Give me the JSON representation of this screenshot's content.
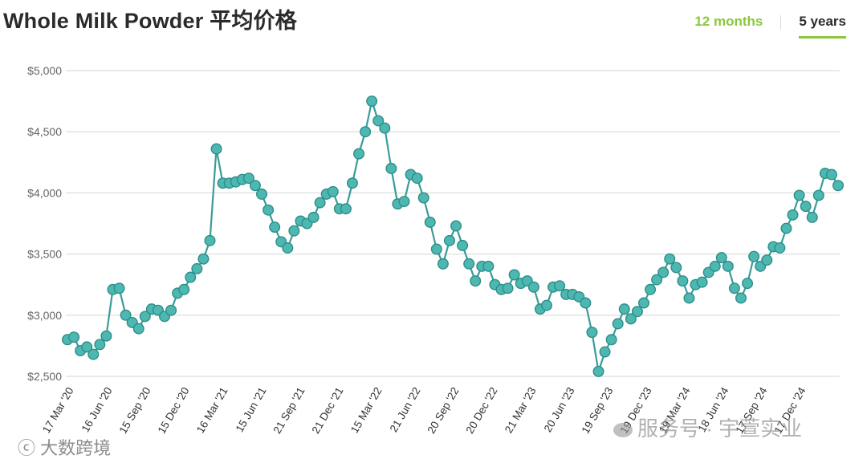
{
  "header": {
    "title": "Whole Milk Powder 平均价格",
    "tabs": [
      {
        "label": "12 months",
        "active": false
      },
      {
        "label": "5 years",
        "active": true
      }
    ]
  },
  "watermarks": {
    "left": "大数跨境",
    "right": "服务号 · 宇萱实业"
  },
  "colors": {
    "line": "#3a9c98",
    "marker_fill": "#4db8b1",
    "marker_stroke": "#2e8e88",
    "tab_accent": "#8cc63f",
    "grid": "#e3e3e3"
  },
  "chart_data": {
    "type": "line",
    "title": "Whole Milk Powder 平均价格",
    "xlabel": "",
    "ylabel": "",
    "ylim": [
      2500,
      5000
    ],
    "yticks": [
      2500,
      3000,
      3500,
      4000,
      4500,
      5000
    ],
    "ytick_labels": [
      "$2,500",
      "$3,000",
      "$3,500",
      "$4,000",
      "$4,500",
      "$5,000"
    ],
    "grid": true,
    "legend": "none",
    "xtick_labels": [
      "17 Mar '20",
      "16 Jun '20",
      "15 Sep '20",
      "15 Dec '20",
      "16 Mar '21",
      "15 Jun '21",
      "21 Sep '21",
      "21 Dec '21",
      "15 Mar '22",
      "21 Jun '22",
      "20 Sep '22",
      "20 Dec '22",
      "21 Mar '23",
      "20 Jun '23",
      "19 Sep '23",
      "19 Dec '23",
      "19 Mar '24",
      "18 Jun '24",
      "17 Sep '24",
      "17 Dec '24"
    ],
    "series": [
      {
        "values": [
          2800,
          2820,
          2710,
          2740,
          2680,
          2760,
          2830,
          3210,
          3220,
          3000,
          2940,
          2890,
          2990,
          3050,
          3040,
          2990,
          3040,
          3180,
          3210,
          3310,
          3380,
          3460,
          3610,
          4360,
          4080,
          4080,
          4090,
          4110,
          4120,
          4060,
          3990,
          3860,
          3720,
          3600,
          3550,
          3690,
          3770,
          3750,
          3800,
          3920,
          3990,
          4010,
          3870,
          3870,
          4080,
          4320,
          4500,
          4750,
          4590,
          4530,
          4200,
          3910,
          3930,
          4150,
          4120,
          3960,
          3760,
          3540,
          3420,
          3610,
          3730,
          3570,
          3420,
          3280,
          3400,
          3400,
          3250,
          3210,
          3220,
          3330,
          3260,
          3280,
          3230,
          3050,
          3080,
          3230,
          3240,
          3170,
          3170,
          3150,
          3100,
          2860,
          2540,
          2700,
          2800,
          2930,
          3050,
          2970,
          3030,
          3100,
          3210,
          3290,
          3350,
          3460,
          3390,
          3280,
          3140,
          3250,
          3270,
          3350,
          3400,
          3470,
          3400,
          3220,
          3140,
          3260,
          3480,
          3400,
          3450,
          3560,
          3550,
          3710,
          3820,
          3980,
          3890,
          3800,
          3980,
          4160,
          4150,
          4060
        ]
      }
    ]
  }
}
